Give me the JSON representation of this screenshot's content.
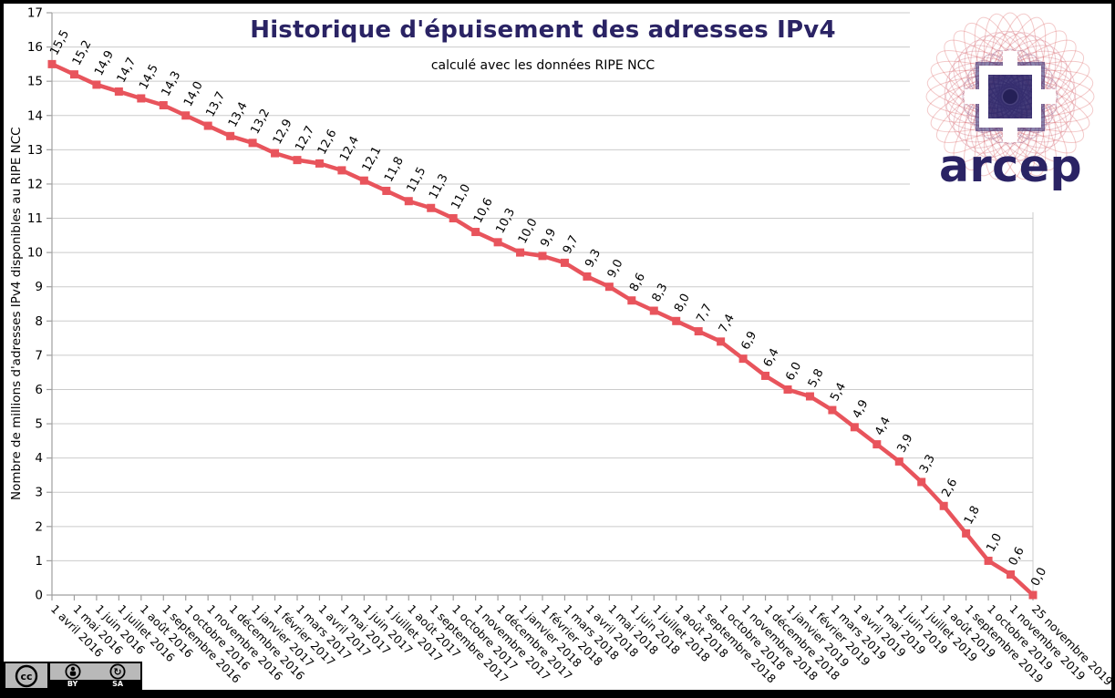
{
  "chart_data": {
    "type": "line",
    "title": "Historique d'épuisement des adresses IPv4",
    "subtitle": "calculé avec les données RIPE NCC",
    "ylabel": "Nombre de millions d'adresses IPv4 disponibles au RIPE NCC",
    "xlabel": "",
    "ylim": [
      0,
      17
    ],
    "y_ticks": [
      0,
      1,
      2,
      3,
      4,
      5,
      6,
      7,
      8,
      9,
      10,
      11,
      12,
      13,
      14,
      15,
      16,
      17
    ],
    "grid": true,
    "legend": "none",
    "line_color": "#e8545c",
    "grid_color": "#cbcbcb",
    "axis_color": "#9f9f9f",
    "categories": [
      "1 avril 2016",
      "1 mai 2016",
      "1 juin 2016",
      "1 juillet 2016",
      "1 août 2016",
      "1 septembre 2016",
      "1 octobre 2016",
      "1 novembre 2016",
      "1 décembre 2016",
      "1 janvier 2017",
      "1 février 2017",
      "1 mars 2017",
      "1 avril 2017",
      "1 mai 2017",
      "1 juin 2017",
      "1 juillet 2017",
      "1 août 2017",
      "1 septembre 2017",
      "1 octobre 2017",
      "1 novembre 2017",
      "1 décembre 2017",
      "1 janvier 2018",
      "1 février 2018",
      "1 mars 2018",
      "1 avril 2018",
      "1 mai 2018",
      "1 juin 2018",
      "1 juillet 2018",
      "1 août 2018",
      "1 septembre 2018",
      "1 octobre 2018",
      "1 novembre 2018",
      "1 décembre 2018",
      "1 janvier 2019",
      "1 février 2019",
      "1 mars 2019",
      "1 avril 2019",
      "1 mai 2019",
      "1 juin 2019",
      "1 juillet 2019",
      "1 août 2019",
      "1 septembre 2019",
      "1 octobre 2019",
      "1 novembre 2019",
      "25 novembre 2019"
    ],
    "values": [
      15.5,
      15.2,
      14.9,
      14.7,
      14.5,
      14.3,
      14.0,
      13.7,
      13.4,
      13.2,
      12.9,
      12.7,
      12.6,
      12.4,
      12.1,
      11.8,
      11.5,
      11.3,
      11.0,
      10.6,
      10.3,
      10.0,
      9.9,
      9.7,
      9.3,
      9.0,
      8.6,
      8.3,
      8.0,
      7.7,
      7.4,
      6.9,
      6.4,
      6.0,
      5.8,
      5.4,
      4.9,
      4.4,
      3.9,
      3.3,
      2.6,
      1.8,
      1.0,
      0.6,
      0.0
    ],
    "decimal_separator": ","
  },
  "logo": {
    "wordmark": "arcep",
    "brand_color": "#2a2364",
    "curve_color": "#d9595a"
  },
  "license": {
    "cc_label": "cc",
    "by_label": "BY",
    "sa_label": "SA"
  }
}
